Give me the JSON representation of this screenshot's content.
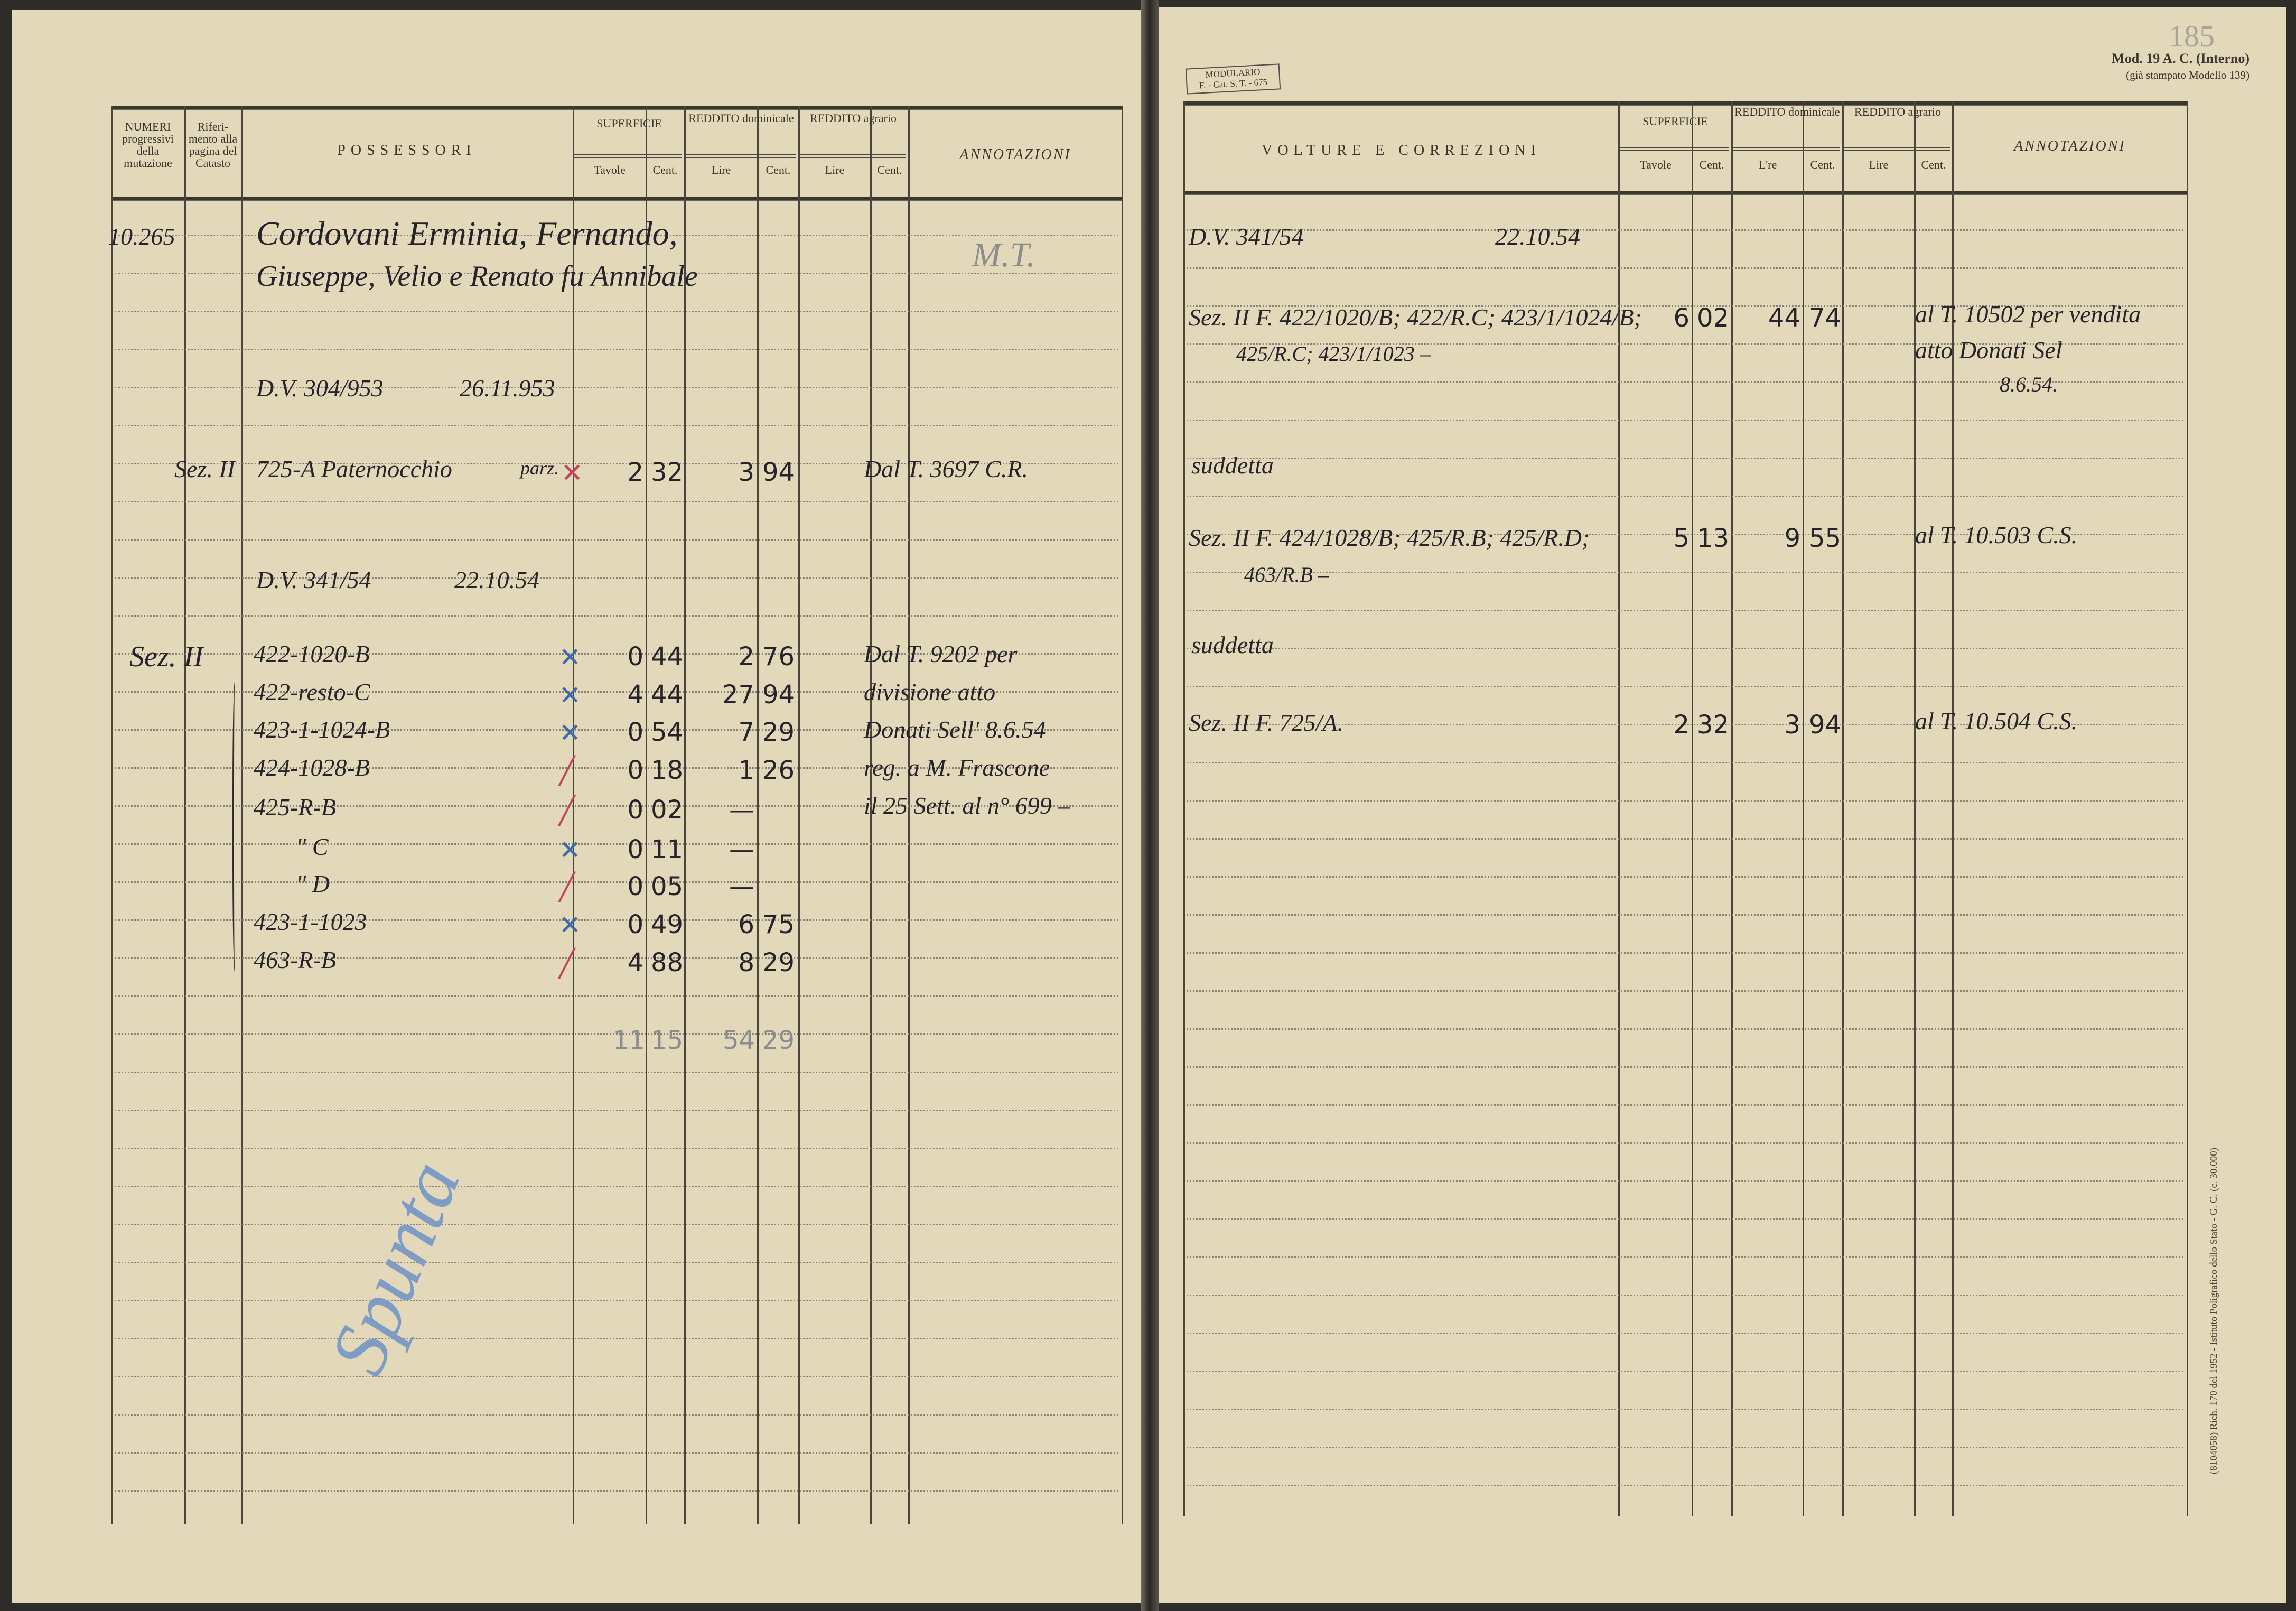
{
  "left_page": {
    "headers": {
      "numeri": "NUMERI progressivi della mutazione",
      "riferimento": "Riferi- mento alla pagina del Catasto",
      "possessori": "POSSESSORI",
      "superficie": "SUPERFICIE",
      "reddito_dominicale": "REDDITO dominicale",
      "reddito_agrario": "REDDITO agrario",
      "annotazioni": "ANNOTAZIONI",
      "tavole": "Tavole",
      "cent": "Cent.",
      "lire": "Lire"
    },
    "entries": {
      "mutation_number": "10.265",
      "owner_line1": "Cordovani Erminia, Fernando,",
      "owner_line2": "Giuseppe, Velio e Renato fu Annibale",
      "annotation_initials": "M.T.",
      "dv1_ref": "D.V. 304/953",
      "dv1_date": "26.11.953",
      "sez1": "Sez. II",
      "parcel1": "725-A Paternocchio",
      "parcel1_note": "parz.",
      "parcel1_tavole": "2",
      "parcel1_cent": "32",
      "parcel1_lire": "3",
      "parcel1_lire_cent": "94",
      "parcel1_annotation": "Dal T. 3697 C.R.",
      "dv2_ref": "D.V. 341/54",
      "dv2_date": "22.10.54",
      "sez2": "Sez. II",
      "parcels": [
        {
          "id": "422-1020-B",
          "mark": "blue",
          "tavole": "0",
          "cent": "44",
          "lire": "2",
          "lire_cent": "76"
        },
        {
          "id": "422-resto-C",
          "mark": "blue",
          "tavole": "4",
          "cent": "44",
          "lire": "27",
          "lire_cent": "94"
        },
        {
          "id": "423-1-1024-B",
          "mark": "blue",
          "tavole": "0",
          "cent": "54",
          "lire": "7",
          "lire_cent": "29"
        },
        {
          "id": "424-1028-B",
          "mark": "red",
          "tavole": "0",
          "cent": "18",
          "lire": "1",
          "lire_cent": "26"
        },
        {
          "id": "425-R-B",
          "mark": "red",
          "tavole": "0",
          "cent": "02",
          "lire": "—",
          "lire_cent": ""
        },
        {
          "id": "\"  C",
          "mark": "blue",
          "tavole": "0",
          "cent": "11",
          "lire": "—",
          "lire_cent": ""
        },
        {
          "id": "\"  D",
          "mark": "red",
          "tavole": "0",
          "cent": "05",
          "lire": "—",
          "lire_cent": ""
        },
        {
          "id": "423-1-1023",
          "mark": "blue",
          "tavole": "0",
          "cent": "49",
          "lire": "6",
          "lire_cent": "75"
        },
        {
          "id": "463-R-B",
          "mark": "red",
          "tavole": "4",
          "cent": "88",
          "lire": "8",
          "lire_cent": "29"
        }
      ],
      "annotation_lines": [
        "Dal T. 9202 per",
        "divisione atto",
        "Donati Sell' 8.6.54",
        "reg. a M. Frascone",
        "il 25 Sett. al n° 699 –"
      ],
      "total_tavole": "11",
      "total_cent": "15",
      "total_lire": "54",
      "total_lire_cent": "29",
      "signature": "Spunta"
    }
  },
  "right_page": {
    "form_stamp_line1": "MODULARIO",
    "form_stamp_line2": "F. - Cat. S. T. - 675",
    "model_label": "Mod. 19 A. C. (Interno)",
    "model_sub": "(già stampato Modello 139)",
    "page_number": "185",
    "printer_note": "(8104058) Rich. 170 del 1952 - Istituto Poligrafico dello Stato - G. C. (c. 30.000)",
    "headers": {
      "volture": "VOLTURE E CORREZIONI",
      "superficie": "SUPERFICIE",
      "reddito_dominicale": "REDDITO dominicale",
      "reddito_agrario": "REDDITO agrario",
      "annotazioni": "ANNOTAZIONI",
      "tavole": "Tavole",
      "cent": "Cent.",
      "lire_dom": "L're",
      "lire": "Lire"
    },
    "entries": {
      "dv_ref": "D.V. 341/54",
      "dv_date": "22.10.54",
      "e1_line1": "Sez. II F. 422/1020/B; 422/R.C; 423/1/1024/B;",
      "e1_line2": "425/R.C; 423/1/1023 –",
      "e1_tavole": "6",
      "e1_cent": "02",
      "e1_lire": "44",
      "e1_lire_cent": "74",
      "e1_annot1": "al T. 10502 per vendita",
      "e1_annot2": "atto Donati Sel",
      "e1_annot3": "8.6.54.",
      "suddetta1": "suddetta",
      "e2_line1": "Sez. II F. 424/1028/B; 425/R.B; 425/R.D;",
      "e2_line2": "463/R.B –",
      "e2_tavole": "5",
      "e2_cent": "13",
      "e2_lire": "9",
      "e2_lire_cent": "55",
      "e2_annot": "al T. 10.503 C.S.",
      "suddetta2": "suddetta",
      "e3_line1": "Sez. II F. 725/A.",
      "e3_tavole": "2",
      "e3_cent": "32",
      "e3_lire": "3",
      "e3_lire_cent": "94",
      "e3_annot": "al T. 10.504 C.S."
    }
  }
}
